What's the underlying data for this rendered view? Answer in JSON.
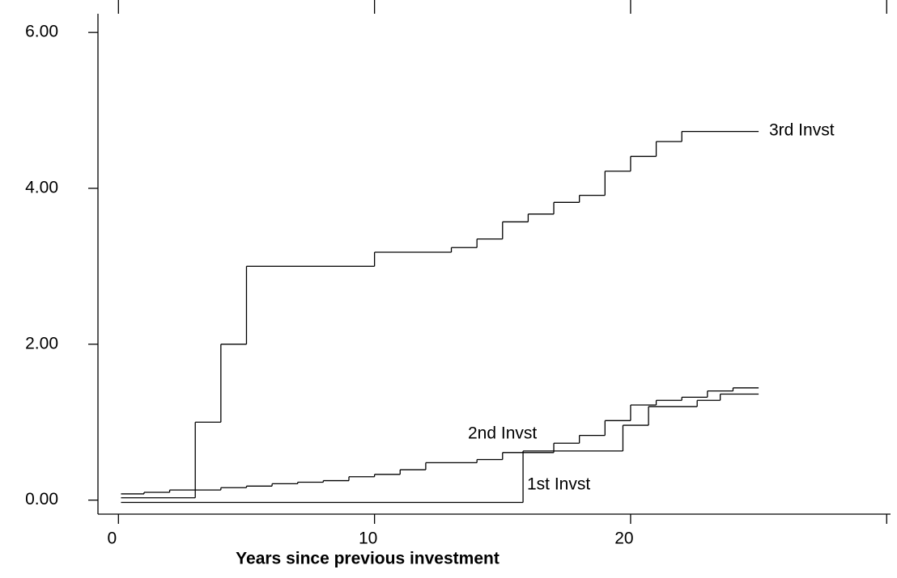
{
  "chart_data": {
    "type": "step",
    "x_label": "Years since previous investment",
    "xlim": [
      -0.8,
      30.15
    ],
    "ylim": [
      -0.18,
      6.24
    ],
    "xticks": [
      0,
      10,
      20,
      {
        "value": 30,
        "label": null
      }
    ],
    "yticks": [
      {
        "value": 0,
        "label": "0.00"
      },
      {
        "value": 2,
        "label": "2.00"
      },
      {
        "value": 4,
        "label": "4.00"
      },
      {
        "value": 6,
        "label": "6.00"
      }
    ],
    "series": [
      {
        "name": "1st Invst",
        "color": "#000000",
        "x": [
          0.1,
          15.8,
          19.7,
          20.7,
          22.6,
          23.5,
          25
        ],
        "values": [
          -0.03,
          0.63,
          0.96,
          1.2,
          1.28,
          1.36,
          1.36
        ]
      },
      {
        "name": "2nd Invst",
        "color": "#000000",
        "x": [
          0.1,
          1,
          2,
          4,
          5,
          6,
          7,
          8,
          9,
          10,
          11,
          12,
          14,
          15,
          17,
          18,
          19,
          20,
          21,
          22,
          23,
          24,
          25
        ],
        "values": [
          0.08,
          0.1,
          0.13,
          0.16,
          0.18,
          0.21,
          0.23,
          0.25,
          0.3,
          0.33,
          0.39,
          0.48,
          0.52,
          0.61,
          0.73,
          0.83,
          1.02,
          1.22,
          1.28,
          1.32,
          1.4,
          1.44,
          1.44
        ]
      },
      {
        "name": "3rd Invst",
        "color": "#000000",
        "x": [
          0.1,
          3,
          4,
          5,
          10,
          13,
          14,
          15,
          16,
          17,
          18,
          19,
          20,
          21,
          22,
          25
        ],
        "values": [
          0.03,
          1.0,
          2.0,
          3.0,
          3.18,
          3.24,
          3.35,
          3.57,
          3.67,
          3.82,
          3.91,
          4.22,
          4.41,
          4.6,
          4.73,
          4.73
        ]
      }
    ]
  }
}
